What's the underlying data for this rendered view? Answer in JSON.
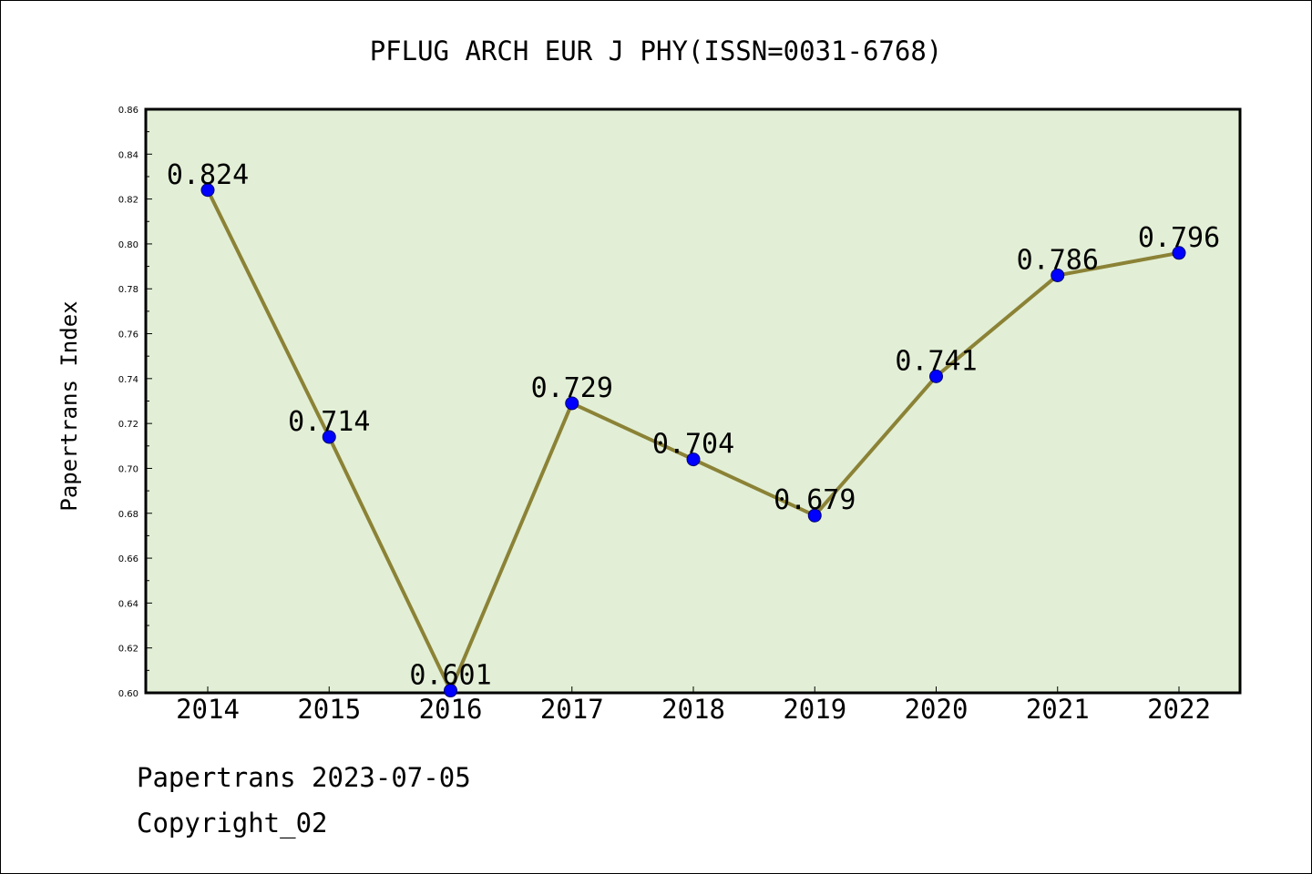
{
  "footer": {
    "line1": "Papertrans 2023-07-05",
    "line2": "Copyright_02"
  },
  "chart_data": {
    "type": "line",
    "title": "PFLUG ARCH EUR J PHY(ISSN=0031-6768)",
    "xlabel": "",
    "ylabel": "Papertrans Index",
    "categories": [
      "2014",
      "2015",
      "2016",
      "2017",
      "2018",
      "2019",
      "2020",
      "2021",
      "2022"
    ],
    "values": [
      0.824,
      0.714,
      0.601,
      0.729,
      0.704,
      0.679,
      0.741,
      0.786,
      0.796
    ],
    "data_labels": [
      "0.824",
      "0.714",
      "0.601",
      "0.729",
      "0.704",
      "0.679",
      "0.741",
      "0.786",
      "0.796"
    ],
    "ylim": [
      0.6,
      0.86
    ],
    "yticks": [
      "0.60",
      "0.62",
      "0.64",
      "0.66",
      "0.68",
      "0.70",
      "0.72",
      "0.74",
      "0.76",
      "0.78",
      "0.80",
      "0.82",
      "0.84",
      "0.86"
    ],
    "grid": false,
    "colors": {
      "plot_background": "#e2efd6",
      "line": "#8b8236",
      "marker": "#0000ff"
    }
  }
}
